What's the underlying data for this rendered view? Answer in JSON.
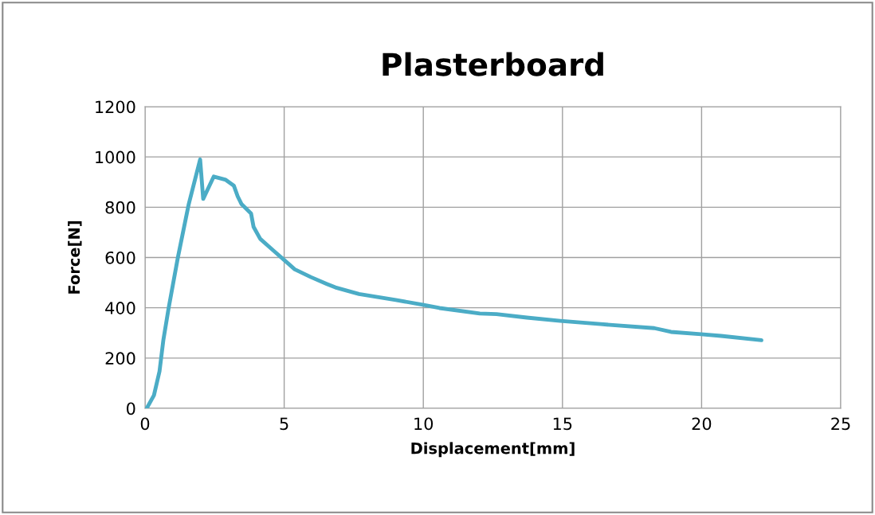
{
  "chart_data": {
    "type": "line",
    "title": "Plasterboard",
    "xlabel": "Displacement[mm]",
    "ylabel": "Force[N]",
    "xlim": [
      0,
      25
    ],
    "xticks": [
      0,
      5,
      10,
      15,
      20,
      25
    ],
    "ylim": [
      0,
      1200
    ],
    "yticks": [
      0,
      200,
      400,
      600,
      800,
      1000,
      1200
    ],
    "grid": true,
    "marker": "none",
    "line_style": "solid",
    "series": [
      {
        "color": "#4bacc6",
        "x": [
          0.06,
          0.32,
          0.52,
          0.66,
          0.85,
          1.18,
          1.57,
          1.98,
          2.09,
          2.47,
          2.9,
          3.19,
          3.33,
          3.47,
          3.81,
          3.9,
          4.14,
          4.62,
          5.0,
          5.38,
          5.96,
          6.53,
          6.84,
          7.69,
          9.01,
          9.98,
          10.58,
          12.03,
          12.63,
          13.72,
          14.92,
          16.37,
          18.3,
          18.9,
          19.98,
          20.7,
          22.15
        ],
        "values": [
          0,
          52,
          147,
          273,
          400,
          600,
          812,
          990,
          833,
          922,
          909,
          886,
          843,
          812,
          775,
          722,
          674,
          627,
          590,
          553,
          522,
          495,
          481,
          455,
          431,
          412,
          399,
          377,
          375,
          361,
          348,
          335,
          319,
          304,
          295,
          288,
          271
        ]
      }
    ]
  }
}
